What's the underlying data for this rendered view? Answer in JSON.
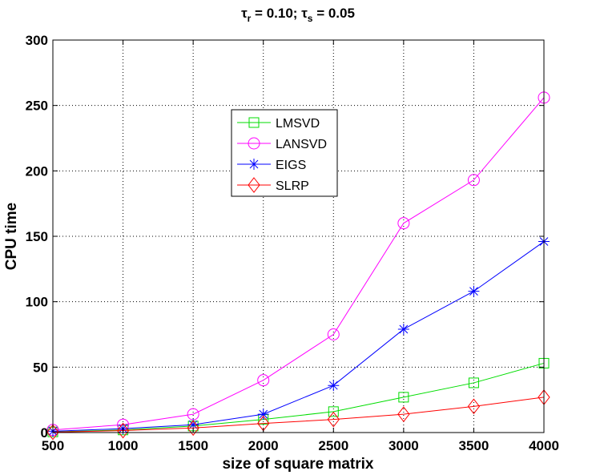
{
  "chart_data": {
    "type": "line",
    "title": "τr = 0.10; τs = 0.05",
    "title_parts": {
      "tau1": "τ",
      "sub1": "r",
      "mid": " = 0.10; ",
      "tau2": "τ",
      "sub2": "s",
      "end": " = 0.05"
    },
    "xlabel": "size of square matrix",
    "ylabel": "CPU time",
    "xlim": [
      500,
      4000
    ],
    "ylim": [
      0,
      300
    ],
    "xticks": [
      500,
      1000,
      1500,
      2000,
      2500,
      3000,
      3500,
      4000
    ],
    "yticks": [
      0,
      50,
      100,
      150,
      200,
      250,
      300
    ],
    "grid": true,
    "legend_position": "upper-center",
    "x": [
      500,
      1000,
      1500,
      2000,
      2500,
      3000,
      3500,
      4000
    ],
    "series": [
      {
        "name": "LMSVD",
        "color": "#00dd00",
        "marker": "square",
        "values": [
          0.5,
          2,
          5,
          10,
          16,
          27,
          38,
          53
        ]
      },
      {
        "name": "LANSVD",
        "color": "#ff00ff",
        "marker": "circle",
        "values": [
          2,
          6,
          14,
          40,
          75,
          160,
          193,
          256
        ]
      },
      {
        "name": "EIGS",
        "color": "#0000ff",
        "marker": "star",
        "values": [
          1,
          3,
          6,
          14,
          36,
          79,
          108,
          146
        ]
      },
      {
        "name": "SLRP",
        "color": "#ff0000",
        "marker": "diamond",
        "values": [
          0.3,
          1.5,
          3.5,
          7,
          10,
          14,
          20,
          27
        ]
      }
    ]
  }
}
